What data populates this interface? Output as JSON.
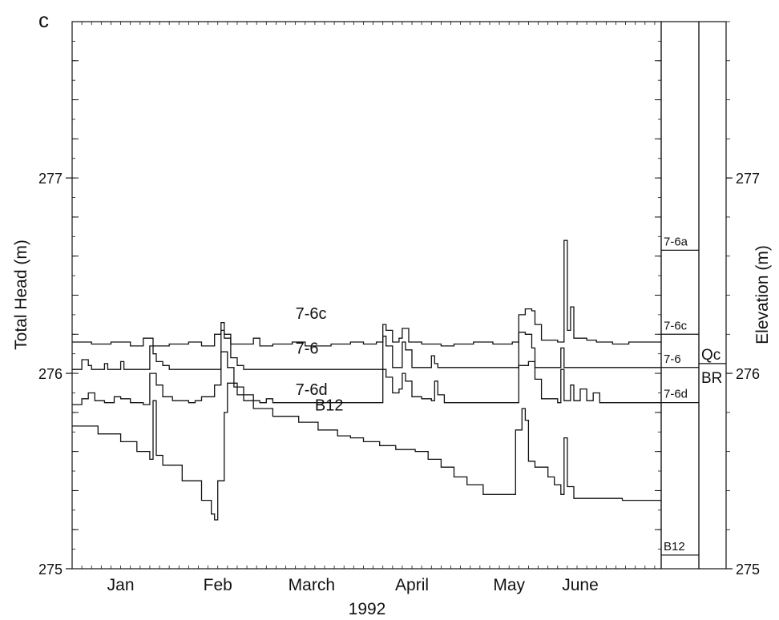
{
  "chart_data": {
    "type": "line",
    "panel_label": "c",
    "xlabel": "1992",
    "ylabel": "Total Head (m)",
    "y2label": "Elevation (m)",
    "ylim": [
      275,
      277.8
    ],
    "xlim": [
      0,
      182
    ],
    "yticks": [
      275,
      276,
      277
    ],
    "xtick_labels": [
      {
        "label": "Jan",
        "day": 15
      },
      {
        "label": "Feb",
        "day": 45
      },
      {
        "label": "March",
        "day": 74
      },
      {
        "label": "April",
        "day": 105
      },
      {
        "label": "May",
        "day": 135
      },
      {
        "label": "June",
        "day": 157
      }
    ],
    "series": [
      {
        "name": "7-6c",
        "label_at": [
          69,
          276.28
        ],
        "points": [
          [
            0,
            276.16
          ],
          [
            6,
            276.15
          ],
          [
            12,
            276.16
          ],
          [
            18,
            276.14
          ],
          [
            22,
            276.18
          ],
          [
            25,
            276.14
          ],
          [
            30,
            276.15
          ],
          [
            36,
            276.16
          ],
          [
            40,
            276.14
          ],
          [
            44,
            276.2
          ],
          [
            46,
            276.26
          ],
          [
            47,
            276.2
          ],
          [
            49,
            276.15
          ],
          [
            54,
            276.15
          ],
          [
            56,
            276.18
          ],
          [
            58,
            276.14
          ],
          [
            62,
            276.15
          ],
          [
            68,
            276.16
          ],
          [
            72,
            276.14
          ],
          [
            80,
            276.15
          ],
          [
            86,
            276.16
          ],
          [
            90,
            276.15
          ],
          [
            94,
            276.16
          ],
          [
            96,
            276.25
          ],
          [
            97,
            276.22
          ],
          [
            99,
            276.16
          ],
          [
            101,
            276.18
          ],
          [
            102,
            276.23
          ],
          [
            104,
            276.16
          ],
          [
            108,
            276.15
          ],
          [
            114,
            276.14
          ],
          [
            118,
            276.15
          ],
          [
            124,
            276.16
          ],
          [
            130,
            276.15
          ],
          [
            136,
            276.16
          ],
          [
            138,
            276.3
          ],
          [
            140,
            276.33
          ],
          [
            142,
            276.32
          ],
          [
            143,
            276.25
          ],
          [
            145,
            276.17
          ],
          [
            150,
            276.16
          ],
          [
            152,
            276.68
          ],
          [
            153,
            276.22
          ],
          [
            154,
            276.34
          ],
          [
            155,
            276.18
          ],
          [
            159,
            276.17
          ],
          [
            162,
            276.16
          ],
          [
            167,
            276.15
          ],
          [
            172,
            276.16
          ],
          [
            182,
            276.16
          ]
        ]
      },
      {
        "name": "7-6",
        "label_at": [
          69,
          276.1
        ],
        "points": [
          [
            0,
            276.02
          ],
          [
            2,
            276.02
          ],
          [
            3,
            276.07
          ],
          [
            5,
            276.04
          ],
          [
            6,
            276.02
          ],
          [
            9,
            276.02
          ],
          [
            10,
            276.05
          ],
          [
            11,
            276.02
          ],
          [
            14,
            276.02
          ],
          [
            15,
            276.06
          ],
          [
            16,
            276.02
          ],
          [
            22,
            276.02
          ],
          [
            24,
            276.14
          ],
          [
            25,
            276.1
          ],
          [
            26,
            276.06
          ],
          [
            28,
            276.04
          ],
          [
            30,
            276.02
          ],
          [
            44,
            276.02
          ],
          [
            46,
            276.22
          ],
          [
            47,
            276.18
          ],
          [
            49,
            276.08
          ],
          [
            51,
            276.04
          ],
          [
            53,
            276.02
          ],
          [
            94,
            276.02
          ],
          [
            96,
            276.19
          ],
          [
            97,
            276.14
          ],
          [
            99,
            276.03
          ],
          [
            101,
            276.03
          ],
          [
            102,
            276.16
          ],
          [
            103,
            276.12
          ],
          [
            105,
            276.03
          ],
          [
            110,
            276.03
          ],
          [
            111,
            276.09
          ],
          [
            112,
            276.05
          ],
          [
            113,
            276.03
          ],
          [
            137,
            276.03
          ],
          [
            138,
            276.21
          ],
          [
            140,
            276.2
          ],
          [
            142,
            276.13
          ],
          [
            143,
            276.03
          ],
          [
            150,
            276.03
          ],
          [
            151,
            276.13
          ],
          [
            152,
            276.03
          ],
          [
            182,
            276.03
          ]
        ]
      },
      {
        "name": "7-6d",
        "label_at": [
          69,
          275.89
        ],
        "points": [
          [
            0,
            275.84
          ],
          [
            3,
            275.87
          ],
          [
            5,
            275.9
          ],
          [
            7,
            275.86
          ],
          [
            10,
            275.85
          ],
          [
            13,
            275.88
          ],
          [
            15,
            275.87
          ],
          [
            18,
            275.85
          ],
          [
            22,
            275.84
          ],
          [
            24,
            276.0
          ],
          [
            26,
            275.94
          ],
          [
            28,
            275.88
          ],
          [
            31,
            275.86
          ],
          [
            36,
            275.85
          ],
          [
            38,
            275.86
          ],
          [
            40,
            275.88
          ],
          [
            44,
            275.94
          ],
          [
            46,
            276.11
          ],
          [
            48,
            276.03
          ],
          [
            50,
            275.93
          ],
          [
            53,
            275.86
          ],
          [
            58,
            275.85
          ],
          [
            60,
            275.87
          ],
          [
            62,
            275.85
          ],
          [
            69,
            275.85
          ],
          [
            94,
            275.85
          ],
          [
            96,
            276.02
          ],
          [
            97,
            275.98
          ],
          [
            99,
            275.9
          ],
          [
            101,
            275.92
          ],
          [
            102,
            276.0
          ],
          [
            103,
            275.96
          ],
          [
            105,
            275.88
          ],
          [
            108,
            275.87
          ],
          [
            111,
            275.86
          ],
          [
            112,
            275.96
          ],
          [
            113,
            275.89
          ],
          [
            115,
            275.85
          ],
          [
            137,
            275.85
          ],
          [
            138,
            276.04
          ],
          [
            141,
            276.06
          ],
          [
            143,
            275.97
          ],
          [
            145,
            275.87
          ],
          [
            150,
            275.85
          ],
          [
            151,
            276.02
          ],
          [
            152,
            275.86
          ],
          [
            154,
            275.94
          ],
          [
            155,
            275.86
          ],
          [
            157,
            275.92
          ],
          [
            159,
            275.86
          ],
          [
            161,
            275.9
          ],
          [
            163,
            275.85
          ],
          [
            182,
            275.85
          ]
        ]
      },
      {
        "name": "B12",
        "label_at": [
          75,
          275.81
        ],
        "points": [
          [
            0,
            275.73
          ],
          [
            8,
            275.69
          ],
          [
            15,
            275.65
          ],
          [
            20,
            275.6
          ],
          [
            24,
            275.56
          ],
          [
            25,
            275.86
          ],
          [
            26,
            275.58
          ],
          [
            28,
            275.53
          ],
          [
            34,
            275.45
          ],
          [
            40,
            275.35
          ],
          [
            43,
            275.28
          ],
          [
            44,
            275.25
          ],
          [
            45,
            275.45
          ],
          [
            47,
            275.8
          ],
          [
            48,
            275.95
          ],
          [
            51,
            275.89
          ],
          [
            56,
            275.82
          ],
          [
            62,
            275.78
          ],
          [
            70,
            275.75
          ],
          [
            76,
            275.71
          ],
          [
            82,
            275.68
          ],
          [
            86,
            275.67
          ],
          [
            90,
            275.65
          ],
          [
            95,
            275.63
          ],
          [
            100,
            275.61
          ],
          [
            106,
            275.6
          ],
          [
            110,
            275.56
          ],
          [
            114,
            275.52
          ],
          [
            118,
            275.47
          ],
          [
            122,
            275.43
          ],
          [
            127,
            275.38
          ],
          [
            129,
            275.38
          ],
          [
            133,
            275.38
          ],
          [
            136,
            275.38
          ],
          [
            137,
            275.71
          ],
          [
            139,
            275.82
          ],
          [
            140,
            275.76
          ],
          [
            141,
            275.55
          ],
          [
            143,
            275.52
          ],
          [
            147,
            275.47
          ],
          [
            149,
            275.43
          ],
          [
            151,
            275.38
          ],
          [
            152,
            275.67
          ],
          [
            153,
            275.42
          ],
          [
            155,
            275.36
          ],
          [
            162,
            275.36
          ],
          [
            170,
            275.35
          ],
          [
            182,
            275.35
          ]
        ]
      }
    ],
    "strip_labels": [
      {
        "label": "7-6a",
        "y": 276.63
      },
      {
        "label": "7-6c",
        "y": 276.2
      },
      {
        "label": "7-6",
        "y": 276.03
      },
      {
        "label": "7-6d",
        "y": 275.85
      },
      {
        "label": "B12",
        "y": 275.07
      }
    ],
    "unit_contact": {
      "y": 276.05,
      "upper": "Qc",
      "lower": "BR"
    }
  }
}
